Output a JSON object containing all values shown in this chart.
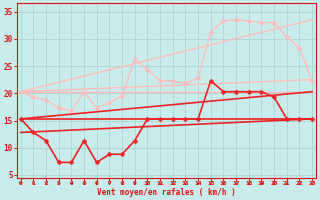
{
  "background_color": "#c8ecec",
  "grid_color": "#b0d8d8",
  "x_label": "Vent moyen/en rafales ( km/h )",
  "x_ticks": [
    0,
    1,
    2,
    3,
    4,
    5,
    6,
    7,
    8,
    9,
    10,
    11,
    12,
    13,
    14,
    15,
    16,
    17,
    18,
    19,
    20,
    21,
    22,
    23
  ],
  "y_ticks": [
    5,
    10,
    15,
    20,
    25,
    30,
    35
  ],
  "ylim": [
    4.5,
    36.5
  ],
  "xlim": [
    -0.3,
    23.3
  ],
  "series": [
    {
      "name": "light_trend_upper",
      "color": "#ffbbbb",
      "lw": 1.0,
      "marker": null,
      "x": [
        0,
        23
      ],
      "y": [
        20.3,
        33.5
      ]
    },
    {
      "name": "light_trend_lower",
      "color": "#ffbbbb",
      "lw": 1.0,
      "marker": null,
      "x": [
        0,
        23
      ],
      "y": [
        20.3,
        22.5
      ]
    },
    {
      "name": "light_flat",
      "color": "#ffbbbb",
      "lw": 1.0,
      "marker": null,
      "x": [
        0,
        23
      ],
      "y": [
        20.3,
        20.3
      ]
    },
    {
      "name": "light_wavy",
      "color": "#ffbbbb",
      "lw": 1.0,
      "marker": "D",
      "ms": 2.5,
      "x": [
        0,
        1,
        2,
        3,
        4,
        5,
        6,
        7,
        8,
        9,
        10,
        11,
        12,
        13,
        14,
        15,
        16,
        17,
        18,
        19,
        20,
        21,
        22,
        23
      ],
      "y": [
        20.3,
        19.3,
        18.8,
        17.3,
        16.8,
        20.3,
        17.3,
        18.3,
        19.5,
        26.3,
        24.3,
        22.3,
        22.3,
        21.8,
        22.8,
        31.3,
        33.3,
        33.5,
        33.3,
        33.0,
        33.0,
        30.3,
        28.3,
        22.3
      ]
    },
    {
      "name": "dark_flat",
      "color": "#ee2222",
      "lw": 1.2,
      "marker": null,
      "x": [
        0,
        23
      ],
      "y": [
        15.3,
        15.3
      ]
    },
    {
      "name": "dark_trend_upper",
      "color": "#ee2222",
      "lw": 1.2,
      "marker": null,
      "x": [
        0,
        23
      ],
      "y": [
        15.3,
        20.3
      ]
    },
    {
      "name": "dark_trend_lower",
      "color": "#ee2222",
      "lw": 1.2,
      "marker": null,
      "x": [
        0,
        23
      ],
      "y": [
        12.8,
        15.3
      ]
    },
    {
      "name": "dark_wavy",
      "color": "#ee2222",
      "lw": 1.2,
      "marker": "D",
      "ms": 2.5,
      "x": [
        0,
        1,
        2,
        3,
        4,
        5,
        6,
        7,
        8,
        9,
        10,
        11,
        12,
        13,
        14,
        15,
        16,
        17,
        18,
        19,
        20,
        21,
        22,
        23
      ],
      "y": [
        15.3,
        12.8,
        11.3,
        7.3,
        7.3,
        11.3,
        7.3,
        8.8,
        8.8,
        11.3,
        15.3,
        15.3,
        15.3,
        15.3,
        15.3,
        22.3,
        20.3,
        20.3,
        20.3,
        20.3,
        19.3,
        15.3,
        15.3,
        15.3
      ]
    }
  ]
}
